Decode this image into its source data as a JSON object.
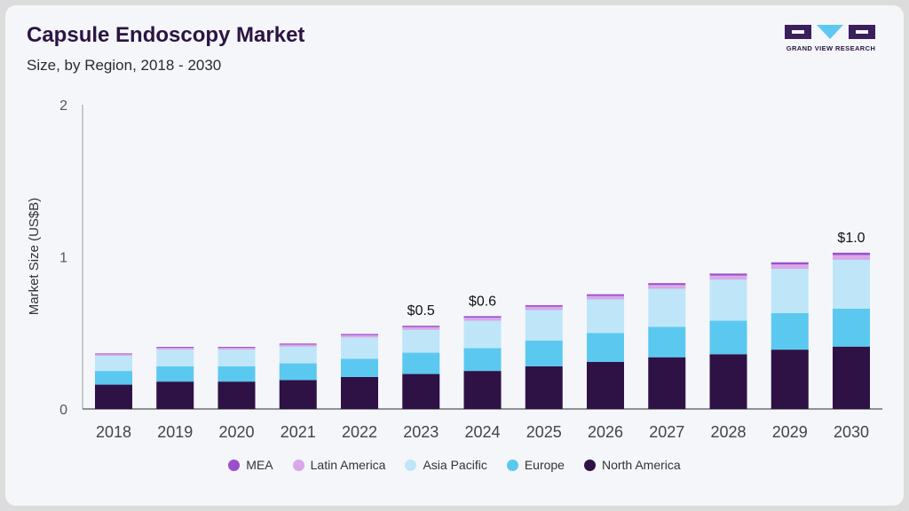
{
  "header": {
    "title": "Capsule Endoscopy Market",
    "subtitle": "Size, by Region, 2018 - 2030"
  },
  "logo": {
    "text": "GRAND VIEW RESEARCH",
    "colors": [
      "#3a1f5a",
      "#5ec8f2"
    ]
  },
  "chart_data": {
    "type": "bar",
    "stacked": true,
    "title": "Capsule Endoscopy Market",
    "subtitle": "Size, by Region, 2018 - 2030",
    "xlabel": "",
    "ylabel": "Market Size (US$B)",
    "ylim": [
      0,
      2
    ],
    "yticks": [
      "0",
      "1",
      "2"
    ],
    "grid": false,
    "legend_position": "bottom",
    "categories": [
      "2018",
      "2019",
      "2020",
      "2021",
      "2022",
      "2023",
      "2024",
      "2025",
      "2026",
      "2027",
      "2028",
      "2029",
      "2030"
    ],
    "series": [
      {
        "name": "North America",
        "color": "#2e1145",
        "values": [
          0.16,
          0.18,
          0.18,
          0.19,
          0.21,
          0.23,
          0.25,
          0.28,
          0.31,
          0.34,
          0.36,
          0.39,
          0.41
        ]
      },
      {
        "name": "Europe",
        "color": "#5bc8f0",
        "values": [
          0.09,
          0.1,
          0.1,
          0.11,
          0.12,
          0.14,
          0.15,
          0.17,
          0.19,
          0.2,
          0.22,
          0.24,
          0.25
        ]
      },
      {
        "name": "Asia Pacific",
        "color": "#bfe6f8",
        "values": [
          0.1,
          0.11,
          0.11,
          0.11,
          0.14,
          0.15,
          0.18,
          0.2,
          0.22,
          0.25,
          0.27,
          0.29,
          0.32
        ]
      },
      {
        "name": "Latin America",
        "color": "#d8a8e8",
        "values": [
          0.01,
          0.012,
          0.012,
          0.013,
          0.015,
          0.018,
          0.02,
          0.022,
          0.023,
          0.025,
          0.027,
          0.03,
          0.032
        ]
      },
      {
        "name": "MEA",
        "color": "#9b4fcf",
        "values": [
          0.005,
          0.006,
          0.006,
          0.007,
          0.008,
          0.009,
          0.01,
          0.01,
          0.011,
          0.012,
          0.013,
          0.014,
          0.015
        ]
      }
    ],
    "annotations": [
      {
        "category": "2023",
        "text": "$0.5"
      },
      {
        "category": "2024",
        "text": "$0.6"
      },
      {
        "category": "2030",
        "text": "$1.0"
      }
    ],
    "legend_order": [
      "MEA",
      "Latin America",
      "Asia Pacific",
      "Europe",
      "North America"
    ]
  }
}
